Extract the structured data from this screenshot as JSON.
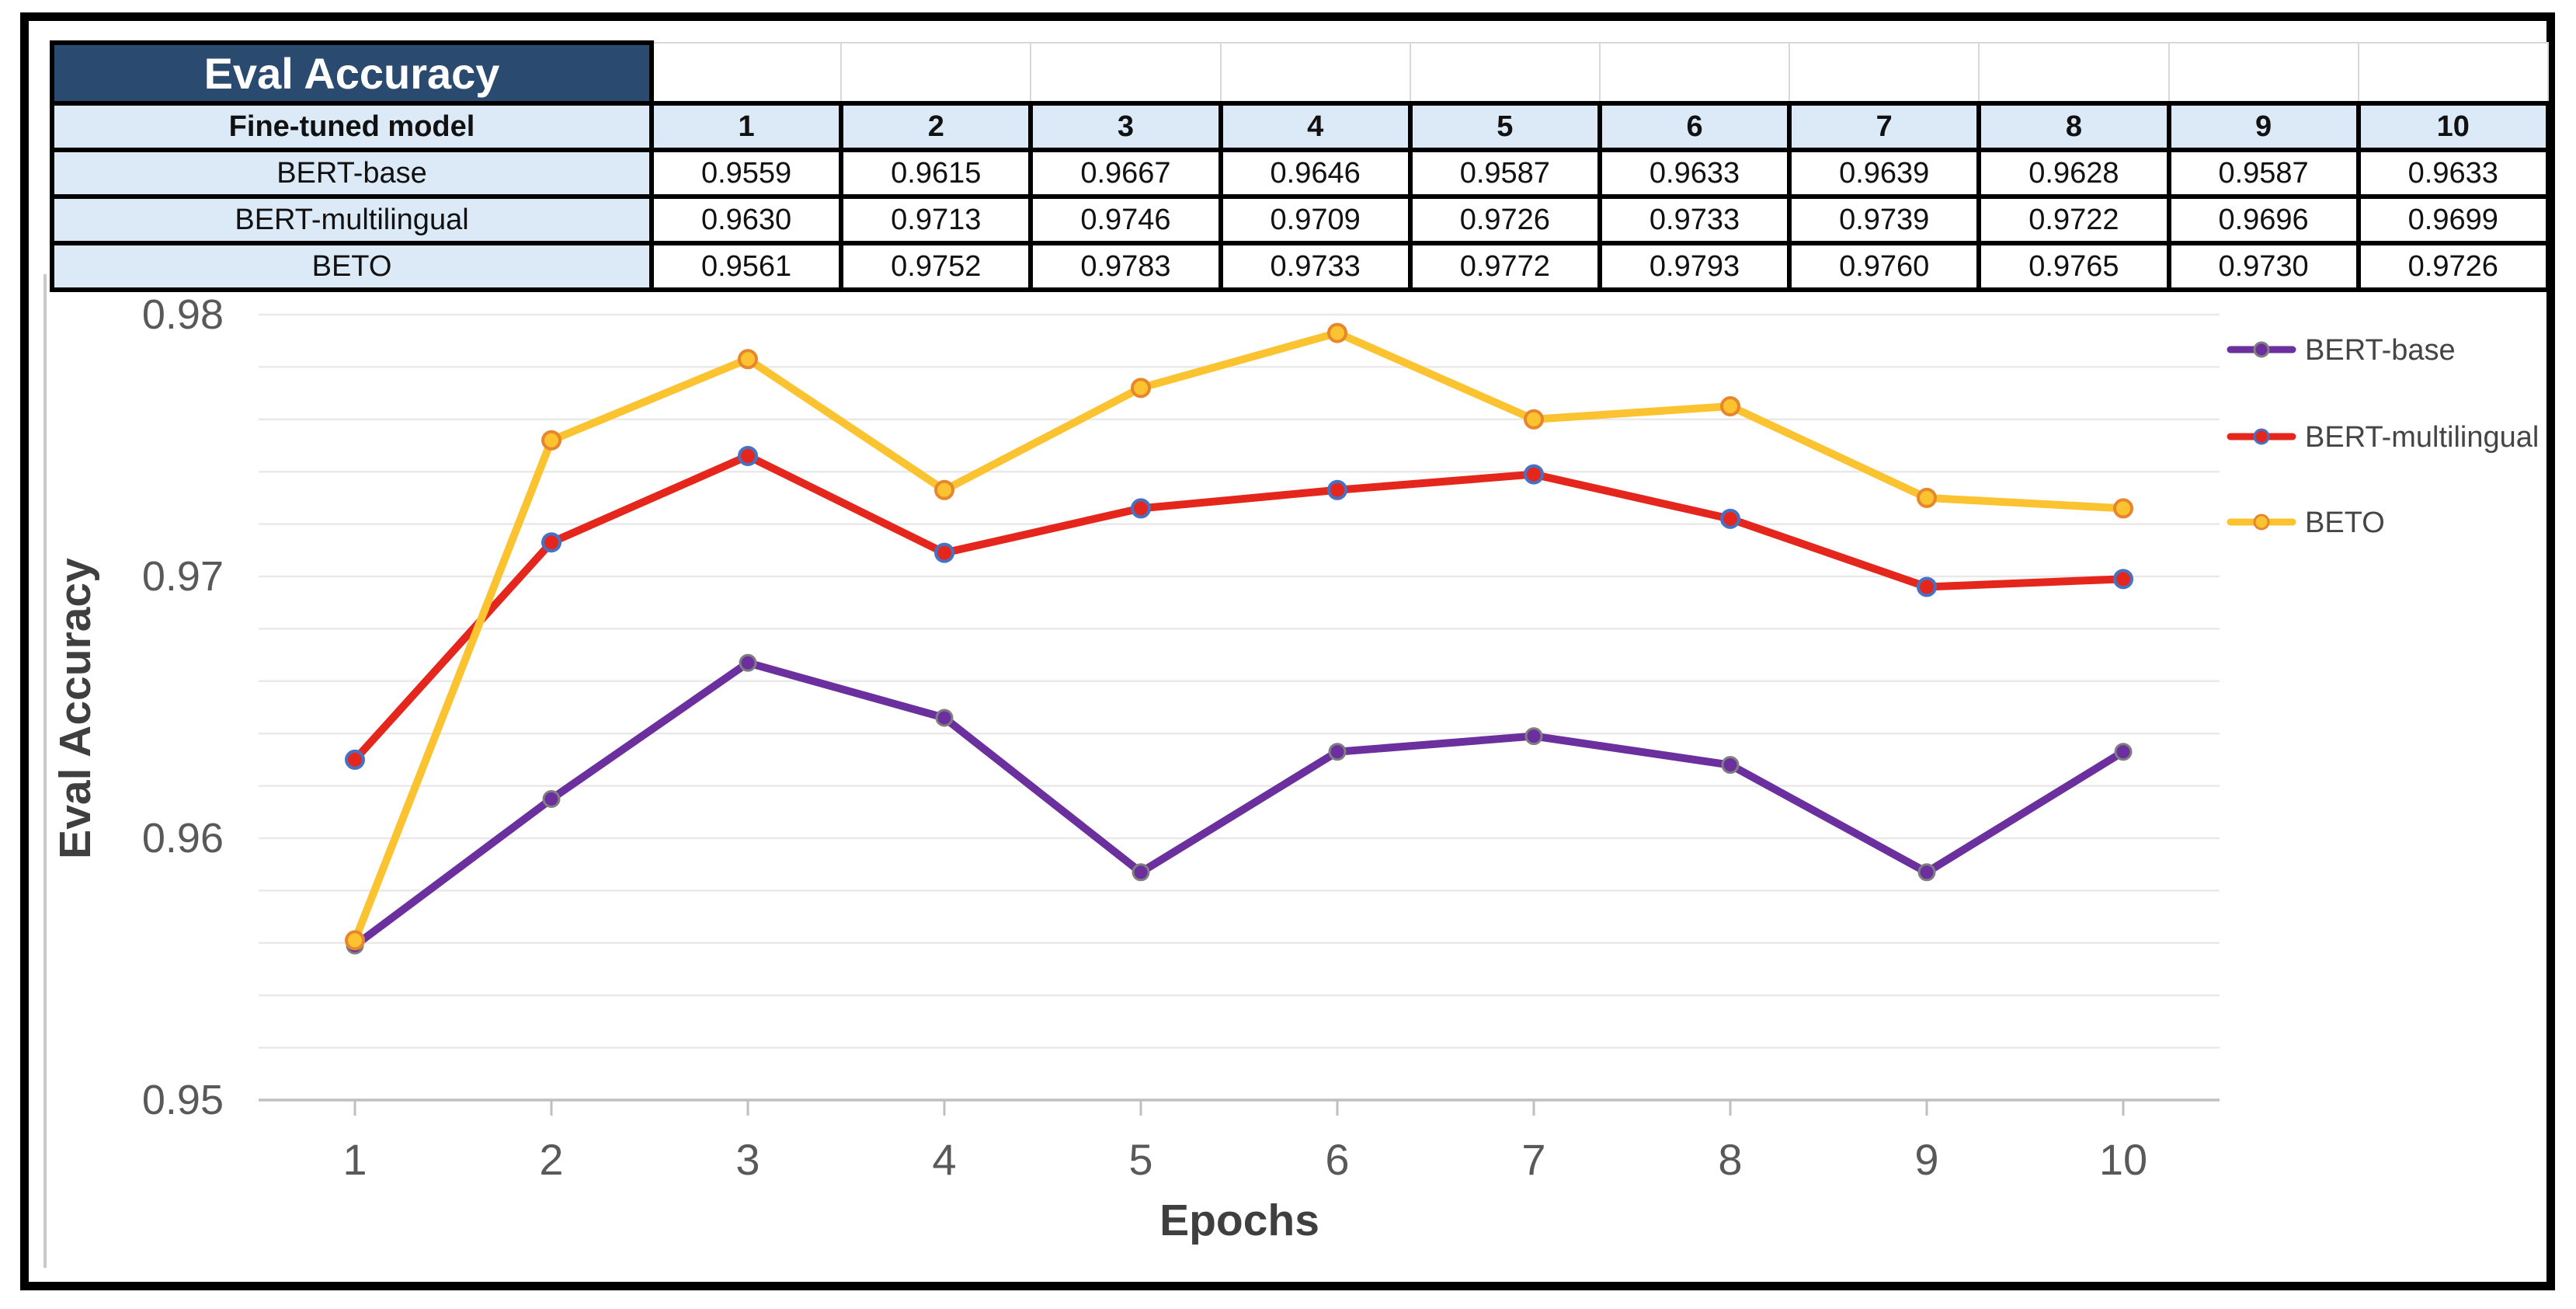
{
  "table": {
    "title": "Eval Accuracy",
    "row_header": "Fine-tuned model",
    "epoch_headers": [
      "1",
      "2",
      "3",
      "4",
      "5",
      "6",
      "7",
      "8",
      "9",
      "10"
    ],
    "rows": [
      {
        "label": "BERT-base",
        "values": [
          "0.9559",
          "0.9615",
          "0.9667",
          "0.9646",
          "0.9587",
          "0.9633",
          "0.9639",
          "0.9628",
          "0.9587",
          "0.9633"
        ]
      },
      {
        "label": "BERT-multilingual",
        "values": [
          "0.9630",
          "0.9713",
          "0.9746",
          "0.9709",
          "0.9726",
          "0.9733",
          "0.9739",
          "0.9722",
          "0.9696",
          "0.9699"
        ]
      },
      {
        "label": "BETO",
        "values": [
          "0.9561",
          "0.9752",
          "0.9783",
          "0.9733",
          "0.9772",
          "0.9793",
          "0.9760",
          "0.9765",
          "0.9730",
          "0.9726"
        ]
      }
    ]
  },
  "chart_data": {
    "type": "line",
    "xlabel": "Epochs",
    "ylabel": "Eval Accuracy",
    "x": [
      1,
      2,
      3,
      4,
      5,
      6,
      7,
      8,
      9,
      10
    ],
    "series": [
      {
        "name": "BERT-base",
        "color": "#6B2F9E",
        "marker_fill": "#6B2F9E",
        "marker_edge": "#7F7F7F",
        "values": [
          0.9559,
          0.9615,
          0.9667,
          0.9646,
          0.9587,
          0.9633,
          0.9639,
          0.9628,
          0.9587,
          0.9633
        ]
      },
      {
        "name": "BERT-multilingual",
        "color": "#E5261D",
        "marker_fill": "#E5261D",
        "marker_edge": "#4472C4",
        "values": [
          0.963,
          0.9713,
          0.9746,
          0.9709,
          0.9726,
          0.9733,
          0.9739,
          0.9722,
          0.9696,
          0.9699
        ]
      },
      {
        "name": "BETO",
        "color": "#FBC32F",
        "marker_fill": "#FBC32F",
        "marker_edge": "#E8862D",
        "values": [
          0.9561,
          0.9752,
          0.9783,
          0.9733,
          0.9772,
          0.9793,
          0.976,
          0.9765,
          0.973,
          0.9726
        ]
      }
    ],
    "ylim": [
      0.95,
      0.9805
    ],
    "yticks": [
      "0.95",
      "0.96",
      "0.97",
      "0.98"
    ],
    "minor_grid_step": 0.002,
    "grid": true,
    "legend_position": "right"
  },
  "colors": {
    "frame": "#000000",
    "table_title_bg": "#2B4A70",
    "table_title_text": "#FFFFFF",
    "header_row_bg": "#DCE9F6",
    "grid_minor": "#E9E9E9",
    "axis_line": "#BFBFBF",
    "tick_text": "#595959",
    "axis_title_text": "#3F3F3F",
    "legend_text": "#454545"
  }
}
